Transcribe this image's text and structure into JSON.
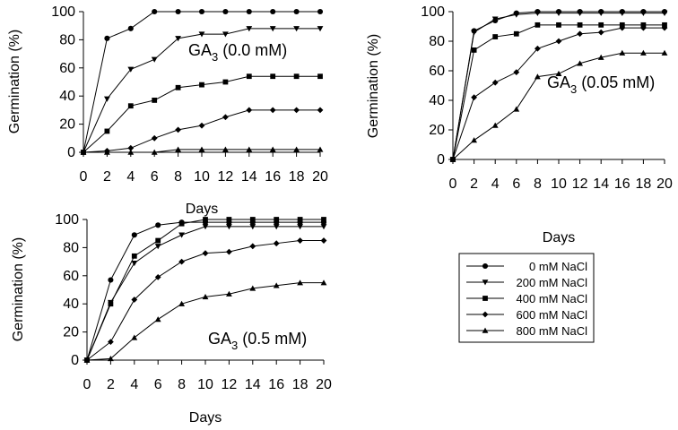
{
  "chart_data": [
    {
      "type": "line",
      "title": "",
      "label_main": "GA",
      "label_sub": "3",
      "label_rest": " (0.0 mM)",
      "xlabel": "Days",
      "ylabel": "Germination (%)",
      "x": [
        0,
        2,
        4,
        6,
        8,
        10,
        12,
        14,
        16,
        18,
        20
      ],
      "xticks": [
        0,
        2,
        4,
        6,
        8,
        10,
        12,
        14,
        16,
        18,
        20
      ],
      "ylim": [
        0,
        100
      ],
      "yticks": [
        0,
        20,
        40,
        60,
        80,
        100
      ],
      "grid": false,
      "series": [
        {
          "name": "0 mM NaCl",
          "marker": "circle",
          "values": [
            0,
            81,
            88,
            100,
            100,
            100,
            100,
            100,
            100,
            100,
            100
          ]
        },
        {
          "name": "200 mM NaCl",
          "marker": "triangle-down",
          "values": [
            0,
            38,
            59,
            66,
            81,
            84,
            84,
            88,
            88,
            88,
            88
          ]
        },
        {
          "name": "400 mM NaCl",
          "marker": "square",
          "values": [
            0,
            15,
            33,
            37,
            46,
            48,
            50,
            54,
            54,
            54,
            54
          ]
        },
        {
          "name": "600 mM NaCl",
          "marker": "diamond",
          "values": [
            0,
            1,
            3,
            10,
            16,
            19,
            25,
            30,
            30,
            30,
            30
          ]
        },
        {
          "name": "800 mM NaCl",
          "marker": "triangle-up",
          "values": [
            0,
            0,
            0,
            0,
            2,
            2,
            2,
            2,
            2,
            2,
            2
          ]
        }
      ]
    },
    {
      "type": "line",
      "title": "",
      "label_main": "GA",
      "label_sub": "3",
      "label_rest": " (0.05 mM)",
      "xlabel": "Days",
      "ylabel": "Germination (%)",
      "x": [
        0,
        2,
        4,
        6,
        8,
        10,
        12,
        14,
        16,
        18,
        20
      ],
      "xticks": [
        0,
        2,
        4,
        6,
        8,
        10,
        12,
        14,
        16,
        18,
        20
      ],
      "ylim": [
        0,
        100
      ],
      "yticks": [
        0,
        20,
        40,
        60,
        80,
        100
      ],
      "grid": false,
      "series": [
        {
          "name": "0 mM NaCl",
          "marker": "circle",
          "values": [
            0,
            87,
            94,
            99,
            100,
            100,
            100,
            100,
            100,
            100,
            100
          ]
        },
        {
          "name": "200 mM NaCl",
          "marker": "triangle-down",
          "values": [
            0,
            86,
            95,
            98,
            99,
            99,
            99,
            99,
            99,
            99,
            99
          ]
        },
        {
          "name": "400 mM NaCl",
          "marker": "square",
          "values": [
            0,
            74,
            83,
            85,
            91,
            91,
            91,
            91,
            91,
            91,
            91
          ]
        },
        {
          "name": "600 mM NaCl",
          "marker": "diamond",
          "values": [
            0,
            42,
            52,
            59,
            75,
            80,
            85,
            86,
            89,
            89,
            89
          ]
        },
        {
          "name": "800 mM NaCl",
          "marker": "triangle-up",
          "values": [
            0,
            13,
            23,
            34,
            56,
            58,
            65,
            69,
            72,
            72,
            72
          ]
        }
      ]
    },
    {
      "type": "line",
      "title": "",
      "label_main": "GA",
      "label_sub": "3",
      "label_rest": " (0.5 mM)",
      "xlabel": "Days",
      "ylabel": "Germination (%)",
      "x": [
        0,
        2,
        4,
        6,
        8,
        10,
        12,
        14,
        16,
        18,
        20
      ],
      "xticks": [
        0,
        2,
        4,
        6,
        8,
        10,
        12,
        14,
        16,
        18,
        20
      ],
      "ylim": [
        0,
        100
      ],
      "yticks": [
        0,
        20,
        40,
        60,
        80,
        100
      ],
      "grid": false,
      "series": [
        {
          "name": "0 mM NaCl",
          "marker": "circle",
          "values": [
            0,
            57,
            89,
            96,
            98,
            98,
            98,
            98,
            98,
            98,
            98
          ]
        },
        {
          "name": "200 mM NaCl",
          "marker": "triangle-down",
          "values": [
            0,
            41,
            69,
            81,
            89,
            95,
            95,
            95,
            95,
            95,
            95
          ]
        },
        {
          "name": "400 mM NaCl",
          "marker": "square",
          "values": [
            0,
            40,
            74,
            85,
            97,
            100,
            100,
            100,
            100,
            100,
            100
          ]
        },
        {
          "name": "600 mM NaCl",
          "marker": "diamond",
          "values": [
            0,
            13,
            43,
            59,
            70,
            76,
            77,
            81,
            83,
            85,
            85
          ]
        },
        {
          "name": "800 mM NaCl",
          "marker": "triangle-up",
          "values": [
            0,
            1,
            16,
            29,
            40,
            45,
            47,
            51,
            53,
            55,
            55
          ]
        }
      ]
    }
  ],
  "legend": {
    "placement": "bottom-right",
    "entries": [
      "0 mM NaCl",
      "200 mM NaCl",
      "400 mM NaCl",
      "600 mM NaCl",
      "800 mM NaCl"
    ]
  }
}
